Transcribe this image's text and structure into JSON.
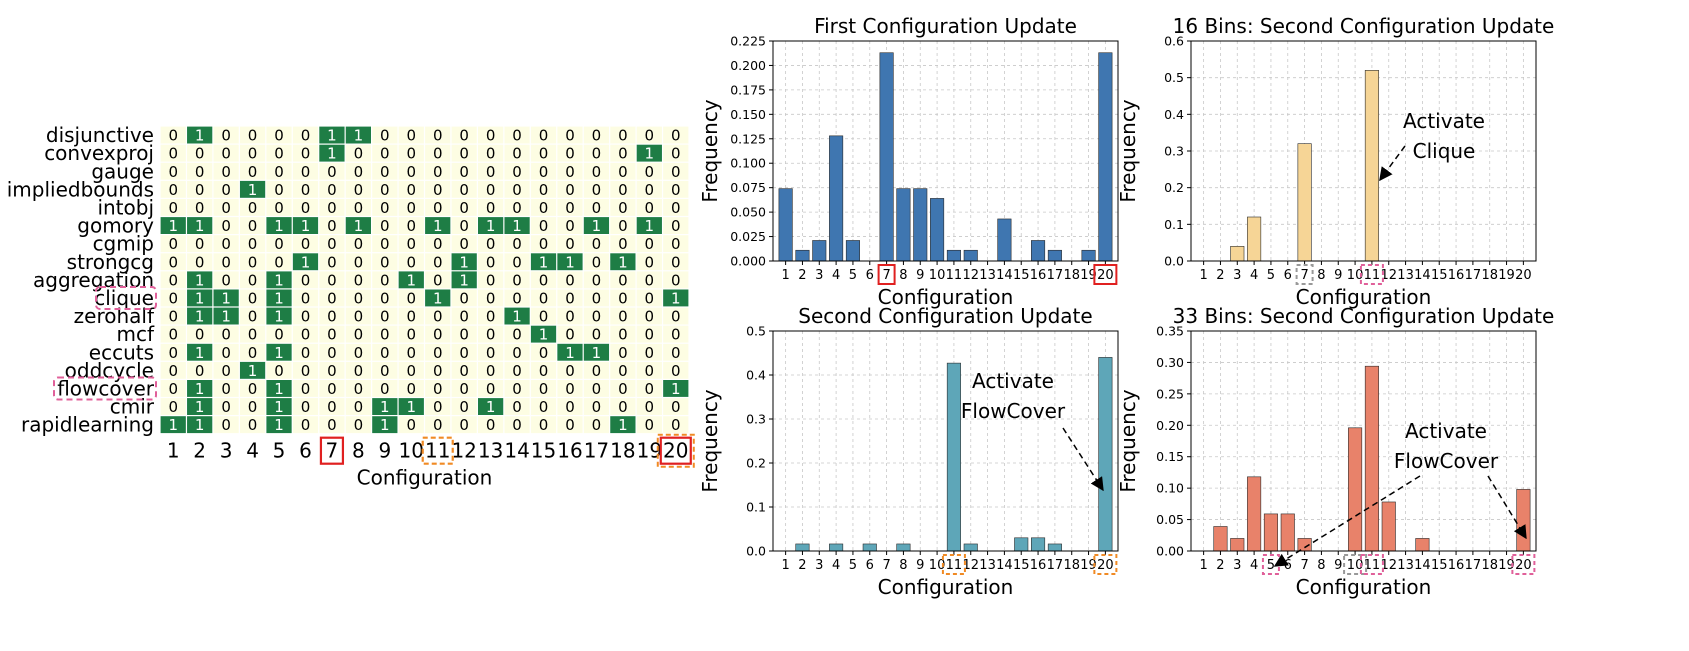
{
  "chart_data": [
    {
      "type": "heatmap",
      "rows": [
        "disjunctive",
        "convexproj",
        "gauge",
        "impliedbounds",
        "intobj",
        "gomory",
        "cgmip",
        "strongcg",
        "aggregation",
        "clique",
        "zerohalf",
        "mcf",
        "eccuts",
        "oddcycle",
        "flowcover",
        "cmir",
        "rapidlearning"
      ],
      "columns": [
        "1",
        "2",
        "3",
        "4",
        "5",
        "6",
        "7",
        "8",
        "9",
        "10",
        "11",
        "12",
        "13",
        "14",
        "15",
        "16",
        "17",
        "18",
        "19",
        "20"
      ],
      "values": [
        [
          0,
          1,
          0,
          0,
          0,
          0,
          1,
          1,
          0,
          0,
          0,
          0,
          0,
          0,
          0,
          0,
          0,
          0,
          0,
          0
        ],
        [
          0,
          0,
          0,
          0,
          0,
          0,
          1,
          0,
          0,
          0,
          0,
          0,
          0,
          0,
          0,
          0,
          0,
          0,
          1,
          0
        ],
        [
          0,
          0,
          0,
          0,
          0,
          0,
          0,
          0,
          0,
          0,
          0,
          0,
          0,
          0,
          0,
          0,
          0,
          0,
          0,
          0
        ],
        [
          0,
          0,
          0,
          1,
          0,
          0,
          0,
          0,
          0,
          0,
          0,
          0,
          0,
          0,
          0,
          0,
          0,
          0,
          0,
          0
        ],
        [
          0,
          0,
          0,
          0,
          0,
          0,
          0,
          0,
          0,
          0,
          0,
          0,
          0,
          0,
          0,
          0,
          0,
          0,
          0,
          0
        ],
        [
          1,
          1,
          0,
          0,
          1,
          1,
          0,
          1,
          0,
          0,
          1,
          0,
          1,
          1,
          0,
          0,
          1,
          0,
          1,
          0
        ],
        [
          0,
          0,
          0,
          0,
          0,
          0,
          0,
          0,
          0,
          0,
          0,
          0,
          0,
          0,
          0,
          0,
          0,
          0,
          0,
          0
        ],
        [
          0,
          0,
          0,
          0,
          0,
          1,
          0,
          0,
          0,
          0,
          0,
          1,
          0,
          0,
          1,
          1,
          0,
          1,
          0,
          0
        ],
        [
          0,
          1,
          0,
          0,
          1,
          0,
          0,
          0,
          0,
          1,
          0,
          1,
          0,
          0,
          0,
          0,
          0,
          0,
          0,
          0
        ],
        [
          0,
          1,
          1,
          0,
          1,
          0,
          0,
          0,
          0,
          0,
          1,
          0,
          0,
          0,
          0,
          0,
          0,
          0,
          0,
          1
        ],
        [
          0,
          1,
          1,
          0,
          1,
          0,
          0,
          0,
          0,
          0,
          0,
          0,
          0,
          1,
          0,
          0,
          0,
          0,
          0,
          0
        ],
        [
          0,
          0,
          0,
          0,
          0,
          0,
          0,
          0,
          0,
          0,
          0,
          0,
          0,
          0,
          1,
          0,
          0,
          0,
          0,
          0
        ],
        [
          0,
          1,
          0,
          0,
          1,
          0,
          0,
          0,
          0,
          0,
          0,
          0,
          0,
          0,
          0,
          1,
          1,
          0,
          0,
          0
        ],
        [
          0,
          0,
          0,
          1,
          0,
          0,
          0,
          0,
          0,
          0,
          0,
          0,
          0,
          0,
          0,
          0,
          0,
          0,
          0,
          0
        ],
        [
          0,
          1,
          0,
          0,
          1,
          0,
          0,
          0,
          0,
          0,
          0,
          0,
          0,
          0,
          0,
          0,
          0,
          0,
          0,
          1
        ],
        [
          0,
          1,
          0,
          0,
          1,
          0,
          0,
          0,
          1,
          1,
          0,
          0,
          1,
          0,
          0,
          0,
          0,
          0,
          0,
          0
        ],
        [
          1,
          1,
          0,
          0,
          1,
          0,
          0,
          0,
          1,
          0,
          0,
          0,
          0,
          0,
          0,
          0,
          0,
          1,
          0,
          0
        ]
      ],
      "xlabel": "Configuration",
      "highlighted_rows": [
        "clique",
        "flowcover"
      ],
      "highlighted_columns": [
        "7",
        "11",
        "20"
      ],
      "colors": {
        "on": "#1e7d45",
        "off": "#fdfde3",
        "text_on": "#ffffff",
        "text_off": "#000000"
      }
    },
    {
      "type": "bar",
      "title": "First Configuration Update",
      "categories": [
        "1",
        "2",
        "3",
        "4",
        "5",
        "6",
        "7",
        "8",
        "9",
        "10",
        "11",
        "12",
        "13",
        "14",
        "15",
        "16",
        "17",
        "18",
        "19",
        "20"
      ],
      "values": [
        0.074,
        0.011,
        0.021,
        0.128,
        0.021,
        0,
        0.213,
        0.074,
        0.074,
        0.064,
        0.011,
        0.011,
        0,
        0.043,
        0,
        0.021,
        0.011,
        0,
        0.011,
        0.213
      ],
      "xlabel": "Configuration",
      "ylabel": "Frequency",
      "ylim": [
        0,
        0.225
      ],
      "yticks": [
        "0.000",
        "0.025",
        "0.050",
        "0.075",
        "0.100",
        "0.125",
        "0.150",
        "0.175",
        "0.200",
        "0.225"
      ],
      "grid": true,
      "color": "#3f76b0",
      "highlighted_ticks": [
        "7",
        "20"
      ]
    },
    {
      "type": "bar",
      "title": "16 Bins: Second Configuration Update",
      "categories": [
        "1",
        "2",
        "3",
        "4",
        "5",
        "6",
        "7",
        "8",
        "9",
        "10",
        "11",
        "12",
        "13",
        "14",
        "15",
        "16",
        "17",
        "18",
        "19",
        "20"
      ],
      "values": [
        0,
        0,
        0.04,
        0.12,
        0,
        0,
        0.32,
        0,
        0,
        0,
        0.52,
        0,
        0,
        0,
        0,
        0,
        0,
        0,
        0,
        0
      ],
      "xlabel": "Configuration",
      "ylabel": "Frequency",
      "ylim": [
        0,
        0.6
      ],
      "yticks": [
        "0.0",
        "0.1",
        "0.2",
        "0.3",
        "0.4",
        "0.5",
        "0.6"
      ],
      "grid": true,
      "color": "#f6d596",
      "highlighted_ticks": [
        "7",
        "11"
      ],
      "annotation": {
        "lines": [
          "Activate",
          "Clique"
        ],
        "target": "11"
      }
    },
    {
      "type": "bar",
      "title": "Second Configuration Update",
      "categories": [
        "1",
        "2",
        "3",
        "4",
        "5",
        "6",
        "7",
        "8",
        "9",
        "10",
        "11",
        "12",
        "13",
        "14",
        "15",
        "16",
        "17",
        "18",
        "19",
        "20"
      ],
      "values": [
        0,
        0.016,
        0,
        0.016,
        0,
        0.016,
        0,
        0.016,
        0,
        0,
        0.427,
        0.016,
        0,
        0,
        0.03,
        0.03,
        0.016,
        0,
        0,
        0.44
      ],
      "xlabel": "Configuration",
      "ylabel": "Frequency",
      "ylim": [
        0,
        0.5
      ],
      "yticks": [
        "0.0",
        "0.1",
        "0.2",
        "0.3",
        "0.4",
        "0.5"
      ],
      "grid": true,
      "color": "#5ea6b8",
      "highlighted_ticks": [
        "11",
        "20"
      ],
      "annotation": {
        "lines": [
          "Activate",
          "FlowCover"
        ],
        "target": "20"
      }
    },
    {
      "type": "bar",
      "title": "33 Bins: Second Configuration Update",
      "categories": [
        "1",
        "2",
        "3",
        "4",
        "5",
        "6",
        "7",
        "8",
        "9",
        "10",
        "11",
        "12",
        "13",
        "14",
        "15",
        "16",
        "17",
        "18",
        "19",
        "20"
      ],
      "values": [
        0,
        0.039,
        0.02,
        0.118,
        0.059,
        0.059,
        0.02,
        0,
        0,
        0.196,
        0.294,
        0.078,
        0,
        0.02,
        0,
        0,
        0,
        0,
        0,
        0.098
      ],
      "xlabel": "Configuration",
      "ylabel": "Frequency",
      "ylim": [
        0,
        0.35
      ],
      "yticks": [
        "0.00",
        "0.05",
        "0.10",
        "0.15",
        "0.20",
        "0.25",
        "0.30",
        "0.35"
      ],
      "grid": true,
      "color": "#e8826a",
      "highlighted_ticks": [
        "5",
        "10",
        "11",
        "20"
      ],
      "annotation": {
        "lines": [
          "Activate",
          "FlowCover"
        ],
        "targets": [
          "5",
          "20"
        ]
      }
    }
  ]
}
